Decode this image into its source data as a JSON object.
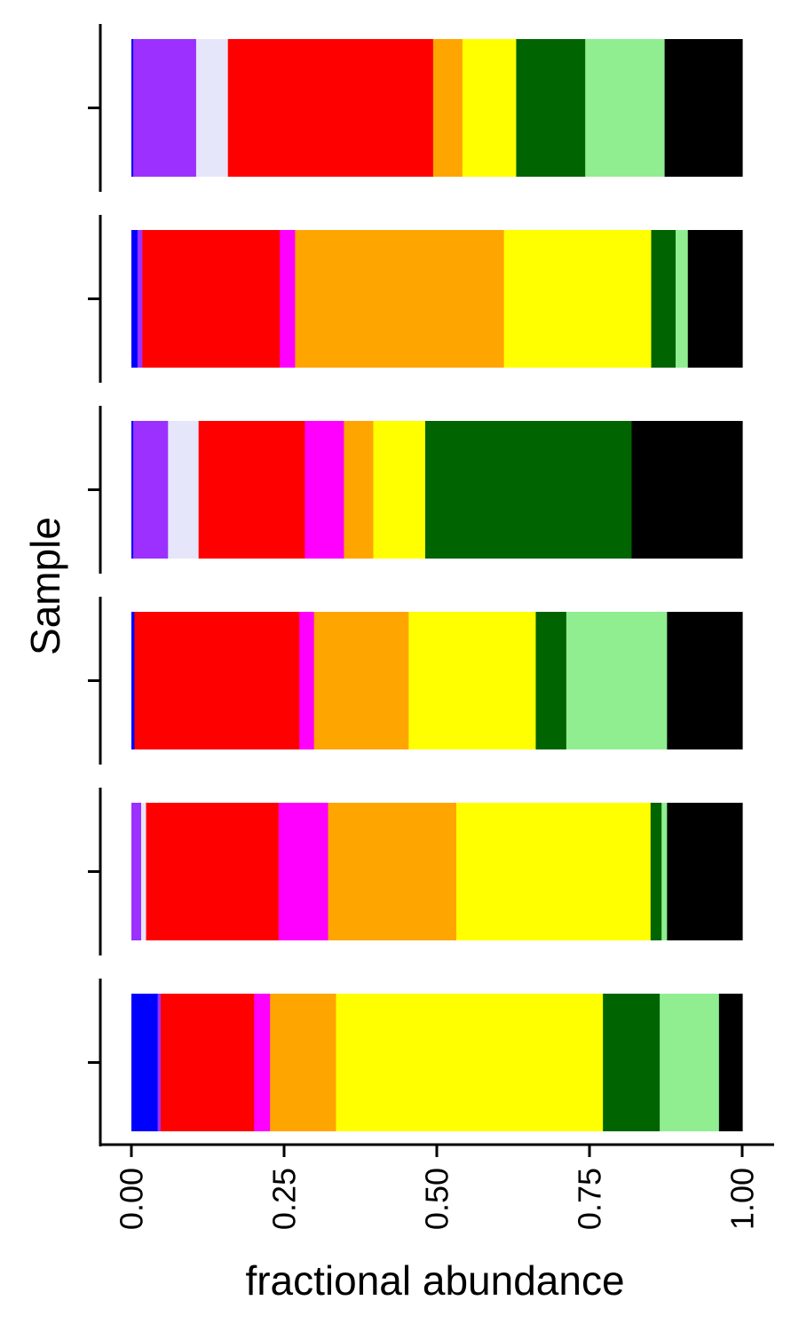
{
  "chart_data": {
    "type": "bar",
    "orientation": "horizontal",
    "stacked": true,
    "xlabel": "fractional abundance",
    "ylabel": "Sample",
    "xlim": [
      0,
      1
    ],
    "x_ticks": [
      0,
      0.25,
      0.5,
      0.75,
      1
    ],
    "x_tick_labels": [
      "0.00",
      "0.25",
      "0.50",
      "0.75",
      "1.00"
    ],
    "rows_top_to_bottom": [
      {
        "segments": [
          {
            "value": 0.003,
            "color": "#0000ff"
          },
          {
            "value": 0.103,
            "color": "#9b30ff"
          },
          {
            "value": 0.052,
            "color": "#e6e6fa"
          },
          {
            "value": 0.336,
            "color": "#ff0000"
          },
          {
            "value": 0.048,
            "color": "#ffa500"
          },
          {
            "value": 0.088,
            "color": "#ffff00"
          },
          {
            "value": 0.113,
            "color": "#006400"
          },
          {
            "value": 0.13,
            "color": "#90ee90"
          },
          {
            "value": 0.127,
            "color": "#000000"
          }
        ]
      },
      {
        "segments": [
          {
            "value": 0.01,
            "color": "#0000ff"
          },
          {
            "value": 0.008,
            "color": "#9b30ff"
          },
          {
            "value": 0.225,
            "color": "#ff0000"
          },
          {
            "value": 0.025,
            "color": "#ff00ff"
          },
          {
            "value": 0.342,
            "color": "#ffa500"
          },
          {
            "value": 0.241,
            "color": "#ffff00"
          },
          {
            "value": 0.04,
            "color": "#006400"
          },
          {
            "value": 0.02,
            "color": "#90ee90"
          },
          {
            "value": 0.089,
            "color": "#000000"
          }
        ]
      },
      {
        "segments": [
          {
            "value": 0.003,
            "color": "#0000ff"
          },
          {
            "value": 0.057,
            "color": "#9b30ff"
          },
          {
            "value": 0.05,
            "color": "#e6e6fa"
          },
          {
            "value": 0.174,
            "color": "#ff0000"
          },
          {
            "value": 0.064,
            "color": "#ff00ff"
          },
          {
            "value": 0.048,
            "color": "#ffa500"
          },
          {
            "value": 0.085,
            "color": "#ffff00"
          },
          {
            "value": 0.338,
            "color": "#006400"
          },
          {
            "value": 0.181,
            "color": "#000000"
          }
        ]
      },
      {
        "segments": [
          {
            "value": 0.005,
            "color": "#0000ff"
          },
          {
            "value": 0.27,
            "color": "#ff0000"
          },
          {
            "value": 0.024,
            "color": "#ff00ff"
          },
          {
            "value": 0.155,
            "color": "#ffa500"
          },
          {
            "value": 0.208,
            "color": "#ffff00"
          },
          {
            "value": 0.05,
            "color": "#006400"
          },
          {
            "value": 0.165,
            "color": "#90ee90"
          },
          {
            "value": 0.123,
            "color": "#000000"
          }
        ]
      },
      {
        "segments": [
          {
            "value": 0.016,
            "color": "#9b30ff"
          },
          {
            "value": 0.008,
            "color": "#e6e6fa"
          },
          {
            "value": 0.217,
            "color": "#ff0000"
          },
          {
            "value": 0.081,
            "color": "#ff00ff"
          },
          {
            "value": 0.21,
            "color": "#ffa500"
          },
          {
            "value": 0.318,
            "color": "#ffff00"
          },
          {
            "value": 0.018,
            "color": "#006400"
          },
          {
            "value": 0.009,
            "color": "#90ee90"
          },
          {
            "value": 0.123,
            "color": "#000000"
          }
        ]
      },
      {
        "segments": [
          {
            "value": 0.043,
            "color": "#0000ff"
          },
          {
            "value": 0.005,
            "color": "#9b30ff"
          },
          {
            "value": 0.153,
            "color": "#ff0000"
          },
          {
            "value": 0.026,
            "color": "#ff00ff"
          },
          {
            "value": 0.108,
            "color": "#ffa500"
          },
          {
            "value": 0.437,
            "color": "#ffff00"
          },
          {
            "value": 0.093,
            "color": "#006400"
          },
          {
            "value": 0.097,
            "color": "#90ee90"
          },
          {
            "value": 0.038,
            "color": "#000000"
          }
        ]
      }
    ],
    "axis_color": "#000000",
    "background_color": "#ffffff"
  }
}
